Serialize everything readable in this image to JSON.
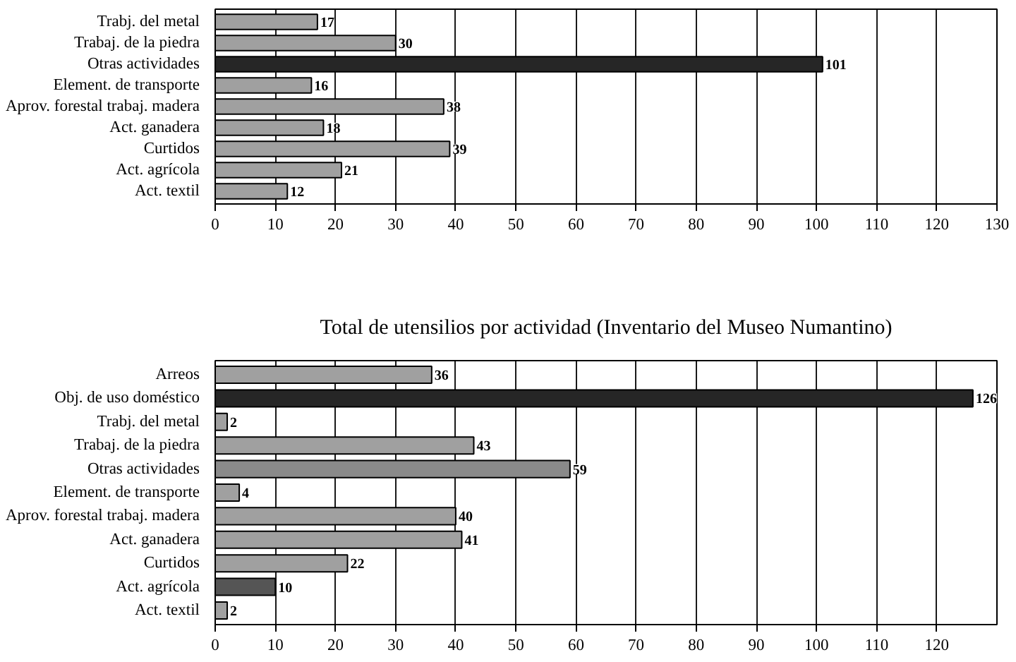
{
  "chart_data": [
    {
      "type": "bar",
      "orientation": "horizontal",
      "categories": [
        "Trabj. del metal",
        "Trabaj. de la piedra",
        "Otras actividades",
        "Element. de transporte",
        "Aprov. forestal trabaj. madera",
        "Act. ganadera",
        "Curtidos",
        "Act. agrícola",
        "Act. textil"
      ],
      "values": [
        17,
        30,
        101,
        16,
        38,
        18,
        39,
        21,
        12
      ],
      "colors": [
        "#a0a0a0",
        "#a0a0a0",
        "#262626",
        "#a0a0a0",
        "#a0a0a0",
        "#a0a0a0",
        "#a0a0a0",
        "#a0a0a0",
        "#a0a0a0"
      ],
      "xlim": [
        0,
        130
      ],
      "xticks": [
        0,
        10,
        20,
        30,
        40,
        50,
        60,
        70,
        80,
        90,
        100,
        110,
        120,
        130
      ],
      "grid": "x",
      "data_labels": true
    },
    {
      "type": "bar",
      "orientation": "horizontal",
      "title": "Total de utensilios por actividad (Inventario del Museo Numantino)",
      "categories": [
        "Arreos",
        "Obj. de uso doméstico",
        "Trabj. del metal",
        "Trabaj. de la piedra",
        "Otras actividades",
        "Element. de transporte",
        "Aprov. forestal trabaj. madera",
        "Act. ganadera",
        "Curtidos",
        "Act. agrícola",
        "Act. textil"
      ],
      "values": [
        36,
        126,
        2,
        43,
        59,
        4,
        40,
        41,
        22,
        10,
        2
      ],
      "colors": [
        "#a0a0a0",
        "#262626",
        "#a0a0a0",
        "#a0a0a0",
        "#8a8a8a",
        "#a0a0a0",
        "#a0a0a0",
        "#a0a0a0",
        "#a0a0a0",
        "#555555",
        "#a0a0a0"
      ],
      "xlim": [
        0,
        130
      ],
      "xticks": [
        0,
        10,
        20,
        30,
        40,
        50,
        60,
        70,
        80,
        90,
        100,
        110,
        120
      ],
      "grid": "x",
      "data_labels": true
    }
  ]
}
